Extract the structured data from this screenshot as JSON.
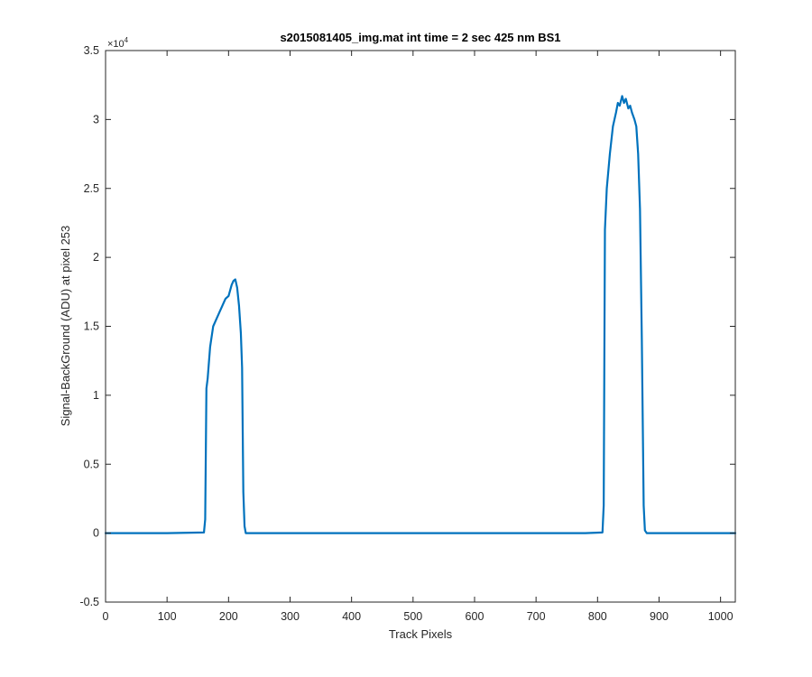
{
  "chart_data": {
    "type": "line",
    "title": "s2015081405_img.mat int time = 2 sec  425 nm BS1",
    "xlabel": "Track Pixels",
    "ylabel": "Signal-BackGround (ADU) at pixel 253",
    "xlim": [
      0,
      1024
    ],
    "ylim": [
      -0.5,
      3.5
    ],
    "y_multiplier": "×10",
    "y_multiplier_exponent": "4",
    "x_ticks": [
      0,
      100,
      200,
      300,
      400,
      500,
      600,
      700,
      800,
      900,
      1000
    ],
    "x_tick_labels": [
      "0",
      "100",
      "200",
      "300",
      "400",
      "500",
      "600",
      "700",
      "800",
      "900",
      "1000"
    ],
    "y_ticks": [
      -0.5,
      0,
      0.5,
      1,
      1.5,
      2,
      2.5,
      3,
      3.5
    ],
    "y_tick_labels": [
      "-0.5",
      "0",
      "0.5",
      "1",
      "1.5",
      "2",
      "2.5",
      "3",
      "3.5"
    ],
    "grid": false,
    "box": true,
    "series": [
      {
        "color": "#0072bd",
        "x": [
          0,
          100,
          160,
          162,
          164,
          166,
          170,
          175,
          180,
          185,
          190,
          195,
          200,
          205,
          208,
          211,
          214,
          217,
          220,
          222,
          224,
          226,
          228,
          232,
          300,
          400,
          500,
          600,
          700,
          780,
          808,
          810,
          812,
          815,
          820,
          825,
          830,
          833,
          836,
          840,
          843,
          846,
          850,
          853,
          856,
          860,
          863,
          866,
          869,
          872,
          875,
          877,
          880,
          900,
          1000,
          1024
        ],
        "y": [
          0,
          0,
          0.005,
          0.1,
          1.05,
          1.12,
          1.35,
          1.5,
          1.55,
          1.6,
          1.65,
          1.7,
          1.72,
          1.8,
          1.83,
          1.84,
          1.78,
          1.65,
          1.45,
          1.2,
          0.3,
          0.05,
          0,
          0,
          0,
          0,
          0,
          0,
          0,
          0,
          0.005,
          0.2,
          2.2,
          2.5,
          2.75,
          2.95,
          3.05,
          3.12,
          3.1,
          3.17,
          3.12,
          3.15,
          3.08,
          3.1,
          3.05,
          3.0,
          2.95,
          2.75,
          2.35,
          1.4,
          0.2,
          0.02,
          0,
          0,
          0,
          0
        ]
      }
    ]
  }
}
